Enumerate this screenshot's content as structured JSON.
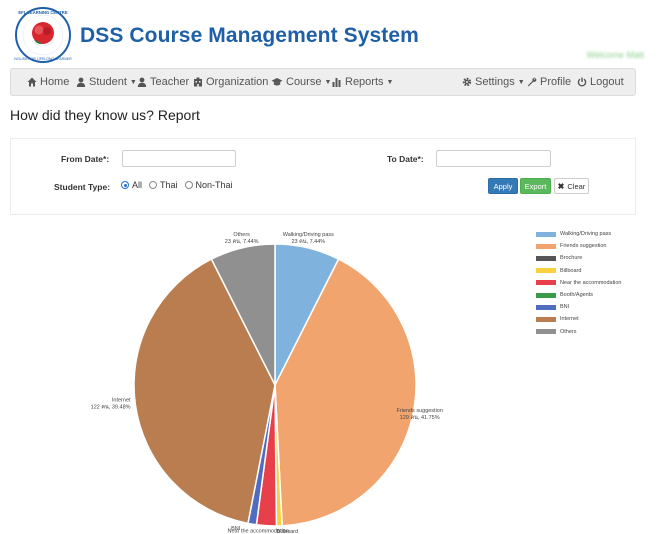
{
  "header": {
    "logo_text": "EFL LEARNING CENTRE · ENGLISH FOR LIFELONG LEARNERS",
    "title": "DSS Course Management System",
    "welcome": "Welcome Matt"
  },
  "nav": {
    "home": "Home",
    "student": "Student",
    "teacher": "Teacher",
    "organization": "Organization",
    "course": "Course",
    "reports": "Reports",
    "settings": "Settings",
    "profile": "Profile",
    "logout": "Logout"
  },
  "page": {
    "title": "How did they know us? Report"
  },
  "filters": {
    "from_label": "From Date*:",
    "from_value": "",
    "to_label": "To Date*:",
    "to_value": "",
    "student_type_label": "Student Type:",
    "options": [
      "All",
      "Thai",
      "Non-Thai"
    ],
    "selected": "All",
    "apply": "Apply",
    "export": "Export",
    "clear": "Clear"
  },
  "chart_data": {
    "type": "pie",
    "series": [
      {
        "name": "Walking/Driving pass",
        "count": 23,
        "percent": 7.44,
        "color": "#7fb2dc"
      },
      {
        "name": "Friends suggestion",
        "count": 129,
        "percent": 41.75,
        "color": "#f2a46f"
      },
      {
        "name": "Brochure",
        "count": 0,
        "percent": 0,
        "color": "#555555"
      },
      {
        "name": "Billboard",
        "count": 2,
        "percent": 0.65,
        "color": "#f7d23e"
      },
      {
        "name": "Near the accommodation",
        "count": 7,
        "percent": 2.27,
        "color": "#e8404a"
      },
      {
        "name": "Booth/Agents",
        "count": 0,
        "percent": 0,
        "color": "#3a9a4a"
      },
      {
        "name": "BNI",
        "count": 3,
        "percent": 0.97,
        "color": "#4f6cc0"
      },
      {
        "name": "Internet",
        "count": 122,
        "percent": 39.48,
        "color": "#b97d50"
      },
      {
        "name": "Others",
        "count": 23,
        "percent": 7.44,
        "color": "#909090"
      }
    ],
    "labels": [
      {
        "name": "Others",
        "value": "23 คน, 7.44%"
      },
      {
        "name": "Walking/Driving pass",
        "value": "23 คน, 7.44%"
      },
      {
        "name": "Internet",
        "value": "122 คน, 39.48%"
      },
      {
        "name": "Friends suggestion",
        "value": "129 คน, 41.75%"
      },
      {
        "name": "Near the accommodation",
        "value": ""
      },
      {
        "name": "BNI",
        "value": ""
      },
      {
        "name": "Billboard",
        "value": ""
      }
    ],
    "legend_position": "right"
  }
}
